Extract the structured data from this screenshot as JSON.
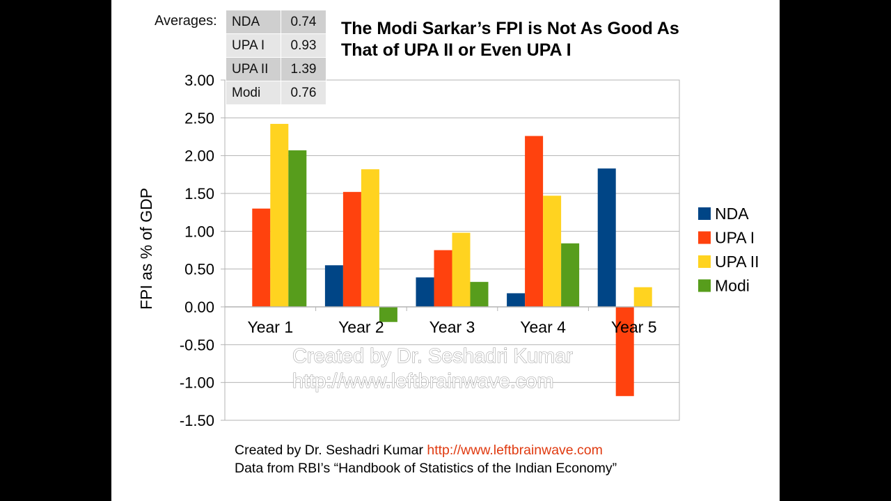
{
  "title_line1": "The Modi Sarkar’s FPI is Not As Good As",
  "title_line2": "That of UPA II or Even UPA I",
  "averages_label": "Averages:",
  "averages": [
    {
      "name": "NDA",
      "value": "0.74"
    },
    {
      "name": "UPA I",
      "value": "0.93"
    },
    {
      "name": "UPA II",
      "value": "1.39"
    },
    {
      "name": "Modi",
      "value": "0.76"
    }
  ],
  "watermark_line1": "Created by Dr. Seshadri Kumar",
  "watermark_line2": "http://www.leftbrainwave.com",
  "footer": {
    "credit": "Created by Dr. Seshadri Kumar ",
    "link": "http://www.leftbrainwave.com",
    "source": "Data from RBI’s “Handbook of Statistics of the Indian Economy”"
  },
  "chart_data": {
    "type": "bar",
    "title": "The Modi Sarkar’s FPI is Not As Good As That of UPA II or Even UPA I",
    "xlabel": "",
    "ylabel": "FPI as % of GDP",
    "ylim": [
      -1.5,
      3.0
    ],
    "yticks": [
      "3.00",
      "2.50",
      "2.00",
      "1.50",
      "1.00",
      "0.50",
      "0.00",
      "-0.50",
      "-1.00",
      "-1.50"
    ],
    "categories": [
      "Year 1",
      "Year 2",
      "Year 3",
      "Year 4",
      "Year 5"
    ],
    "grid": true,
    "legend_position": "right",
    "series": [
      {
        "name": "NDA",
        "color": "#004586",
        "values": [
          null,
          0.55,
          0.39,
          0.18,
          1.83
        ]
      },
      {
        "name": "UPA I",
        "color": "#ff420e",
        "values": [
          1.3,
          1.52,
          0.75,
          2.26,
          -1.18
        ]
      },
      {
        "name": "UPA II",
        "color": "#ffd320",
        "values": [
          2.42,
          1.82,
          0.98,
          1.47,
          0.26
        ]
      },
      {
        "name": "Modi",
        "color": "#579d1c",
        "values": [
          2.07,
          -0.2,
          0.33,
          0.84,
          null
        ]
      }
    ]
  }
}
